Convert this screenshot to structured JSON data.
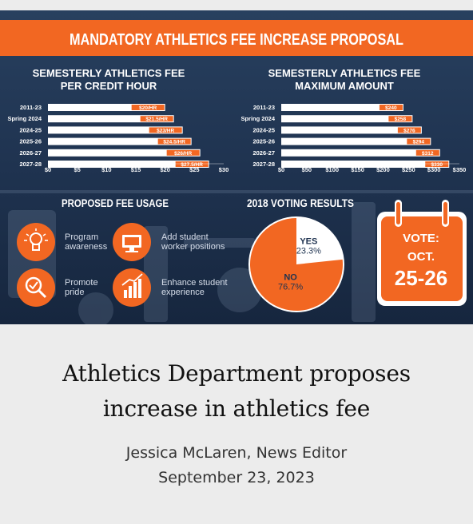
{
  "infographic": {
    "banner_title": "MANDATORY ATHLETICS FEE INCREASE PROPOSAL",
    "accent_color": "#f26722",
    "background_color": "#1f3350",
    "chart_data": [
      {
        "type": "bar",
        "orientation": "horizontal",
        "title": "SEMESTERLY ATHLETICS FEE PER CREDIT HOUR",
        "title_lines": [
          "SEMESTERLY ATHLETICS FEE",
          "PER CREDIT HOUR"
        ],
        "categories": [
          "2011-23",
          "Spring 2024",
          "2024-25",
          "2025-26",
          "2026-27",
          "2027-28"
        ],
        "values": [
          20,
          21.5,
          23,
          24.5,
          26,
          27.5
        ],
        "data_labels": [
          "$20/HR",
          "$21.5/HR",
          "$23/HR",
          "$24.5/HR",
          "$26/HR",
          "$27.5/HR"
        ],
        "xlim": [
          0,
          30
        ],
        "ticks": [
          0,
          5,
          10,
          15,
          20,
          25,
          30
        ],
        "tick_labels": [
          "$0",
          "$5",
          "$10",
          "$15",
          "$20",
          "$25",
          "$30"
        ],
        "grid": false
      },
      {
        "type": "bar",
        "orientation": "horizontal",
        "title": "SEMESTERLY ATHLETICS FEE MAXIMUM AMOUNT",
        "title_lines": [
          "SEMESTERLY ATHLETICS FEE",
          "MAXIMUM AMOUNT"
        ],
        "categories": [
          "2011-23",
          "Spring 2024",
          "2024-25",
          "2025-26",
          "2026-27",
          "2027-28"
        ],
        "values": [
          240,
          258,
          276,
          294,
          312,
          330
        ],
        "data_labels": [
          "$240",
          "$258",
          "$276",
          "$294",
          "$312",
          "$330"
        ],
        "xlim": [
          0,
          350
        ],
        "ticks": [
          0,
          50,
          100,
          150,
          200,
          250,
          300,
          350
        ],
        "tick_labels": [
          "$0",
          "$50",
          "$100",
          "$150",
          "$200",
          "$250",
          "$300",
          "$350"
        ],
        "grid": false
      },
      {
        "type": "pie",
        "title": "2018 VOTING RESULTS",
        "slices": [
          {
            "label": "YES",
            "value": 23.3,
            "value_label": "23.3%",
            "color": "#ffffff"
          },
          {
            "label": "NO",
            "value": 76.7,
            "value_label": "76.7%",
            "color": "#f26722"
          }
        ]
      }
    ],
    "fee_usage": {
      "title": "PROPOSED FEE USAGE",
      "items": [
        {
          "icon": "lightbulb-icon",
          "lines": [
            "Program",
            "awareness"
          ]
        },
        {
          "icon": "monitor-icon",
          "lines": [
            "Add student",
            "worker positions"
          ]
        },
        {
          "icon": "magnifier-check-icon",
          "lines": [
            "Promote",
            "pride"
          ]
        },
        {
          "icon": "growth-chart-icon",
          "lines": [
            "Enhance student",
            "experience"
          ]
        }
      ]
    },
    "vote": {
      "icon": "calendar-icon",
      "lines": [
        "VOTE:",
        "OCT.",
        "25-26"
      ]
    }
  },
  "article": {
    "headline_lines": [
      "Athletics Department proposes",
      "increase in athletics fee"
    ],
    "byline": "Jessica McLaren, News Editor",
    "date": "September 23, 2023"
  }
}
